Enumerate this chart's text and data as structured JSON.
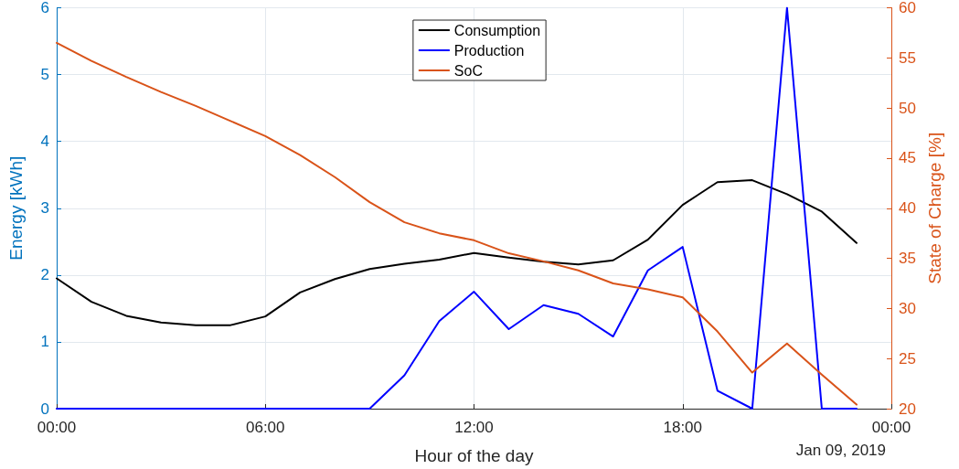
{
  "chart_data": {
    "type": "line",
    "xlabel": "Hour of the day",
    "ylabel": "Energy [kWh]",
    "y2label": "State of Charge [%]",
    "annotations": [
      "Jan 09, 2019"
    ],
    "x": [
      0,
      1,
      2,
      3,
      4,
      5,
      6,
      7,
      8,
      9,
      10,
      11,
      12,
      13,
      14,
      15,
      16,
      17,
      18,
      19,
      20,
      21,
      22,
      23
    ],
    "xlim": [
      0,
      24
    ],
    "xticks": [
      {
        "value": 0,
        "label": "00:00"
      },
      {
        "value": 6,
        "label": "06:00"
      },
      {
        "value": 12,
        "label": "12:00"
      },
      {
        "value": 18,
        "label": "18:00"
      },
      {
        "value": 24,
        "label": "00:00"
      }
    ],
    "ylim": [
      0,
      6
    ],
    "yticks": [
      0,
      1,
      2,
      3,
      4,
      5,
      6
    ],
    "y2lim": [
      20,
      60
    ],
    "y2ticks": [
      20,
      25,
      30,
      35,
      40,
      45,
      50,
      55,
      60
    ],
    "grid": true,
    "legend": "top",
    "marker": "none",
    "line_style": "solid",
    "series": [
      {
        "name": "Consumption",
        "color": "#000000",
        "values": [
          1.95,
          1.6,
          1.39,
          1.29,
          1.25,
          1.25,
          1.38,
          1.74,
          1.94,
          2.09,
          2.17,
          2.23,
          2.33,
          2.26,
          2.2,
          2.16,
          2.22,
          2.53,
          3.05,
          3.39,
          3.42,
          3.21,
          2.95,
          2.48
        ]
      },
      {
        "name": "Production",
        "color": "#0000ff",
        "values": [
          0,
          0,
          0,
          0,
          0,
          0,
          0,
          0,
          0,
          0,
          0.5,
          1.31,
          1.75,
          1.19,
          1.55,
          1.42,
          1.08,
          2.07,
          2.42,
          0.27,
          0,
          6,
          0,
          0
        ]
      },
      {
        "name": "SoC",
        "color": "#d95319",
        "axis": "y2",
        "values": [
          56.5,
          54.7,
          53.1,
          51.6,
          50.2,
          48.7,
          47.2,
          45.3,
          43.1,
          40.6,
          38.6,
          37.5,
          36.8,
          35.5,
          34.7,
          33.8,
          32.5,
          31.9,
          31.1,
          27.7,
          23.6,
          26.5,
          23.4,
          20.4
        ]
      }
    ]
  }
}
